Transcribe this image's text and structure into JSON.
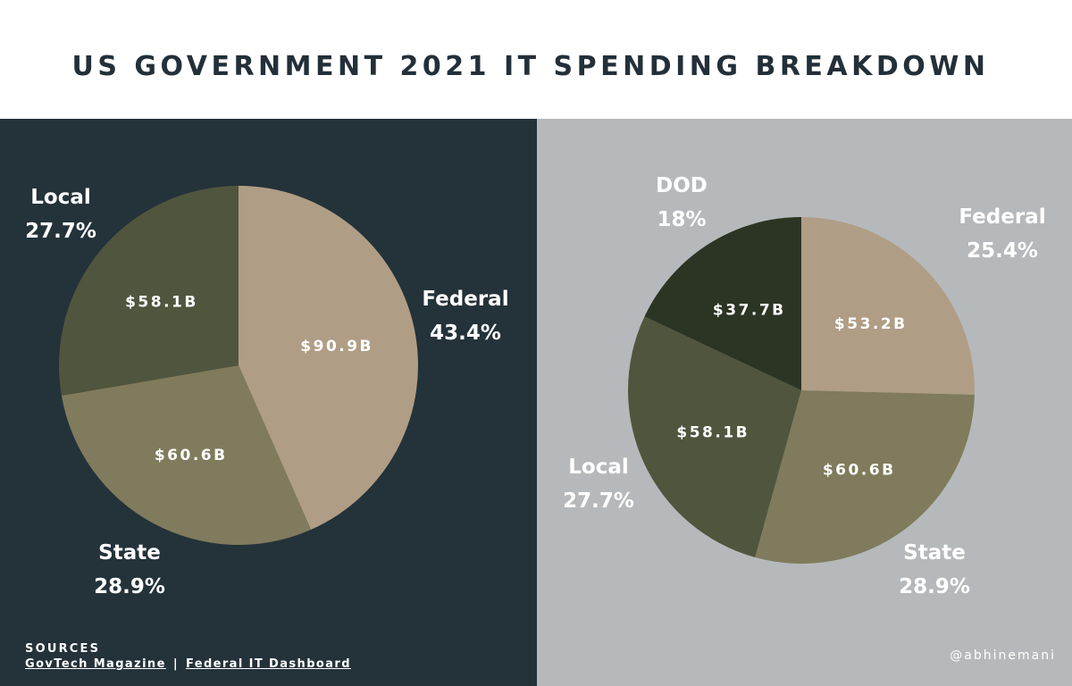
{
  "header": {
    "title": "US GOVERNMENT 2021 IT SPENDING BREAKDOWN"
  },
  "colors": {
    "header_bg": "#ffffff",
    "title_text": "#233039",
    "left_panel_bg": "#24323a",
    "right_panel_bg": "#b6b9bb",
    "federal": "#b09d85",
    "state": "#7f7b5c",
    "local": "#50553e",
    "dod": "#2c3524",
    "label_text": "#ffffff"
  },
  "chart_data": [
    {
      "type": "pie",
      "title": "",
      "slices": [
        {
          "name": "Federal",
          "percent": 43.4,
          "percent_label": "43.4%",
          "value_label": "$90.9B",
          "value": 90.9,
          "color": "#b09d85"
        },
        {
          "name": "State",
          "percent": 28.9,
          "percent_label": "28.9%",
          "value_label": "$60.6B",
          "value": 60.6,
          "color": "#7f7b5c"
        },
        {
          "name": "Local",
          "percent": 27.7,
          "percent_label": "27.7%",
          "value_label": "$58.1B",
          "value": 58.1,
          "color": "#50553e"
        }
      ]
    },
    {
      "type": "pie",
      "title": "",
      "slices": [
        {
          "name": "Federal",
          "percent": 25.4,
          "percent_label": "25.4%",
          "value_label": "$53.2B",
          "value": 53.2,
          "color": "#b09d85"
        },
        {
          "name": "State",
          "percent": 28.9,
          "percent_label": "28.9%",
          "value_label": "$60.6B",
          "value": 60.6,
          "color": "#7f7b5c"
        },
        {
          "name": "Local",
          "percent": 27.7,
          "percent_label": "27.7%",
          "value_label": "$58.1B",
          "value": 58.1,
          "color": "#50553e"
        },
        {
          "name": "DOD",
          "percent": 18,
          "percent_label": "18%",
          "value_label": "$37.7B",
          "value": 37.7,
          "color": "#2c3524"
        }
      ]
    }
  ],
  "footer": {
    "sources_heading": "SOURCES",
    "sources": [
      "GovTech Magazine",
      "Federal IT Dashboard"
    ],
    "separator": "|",
    "handle": "@abhinemani"
  }
}
